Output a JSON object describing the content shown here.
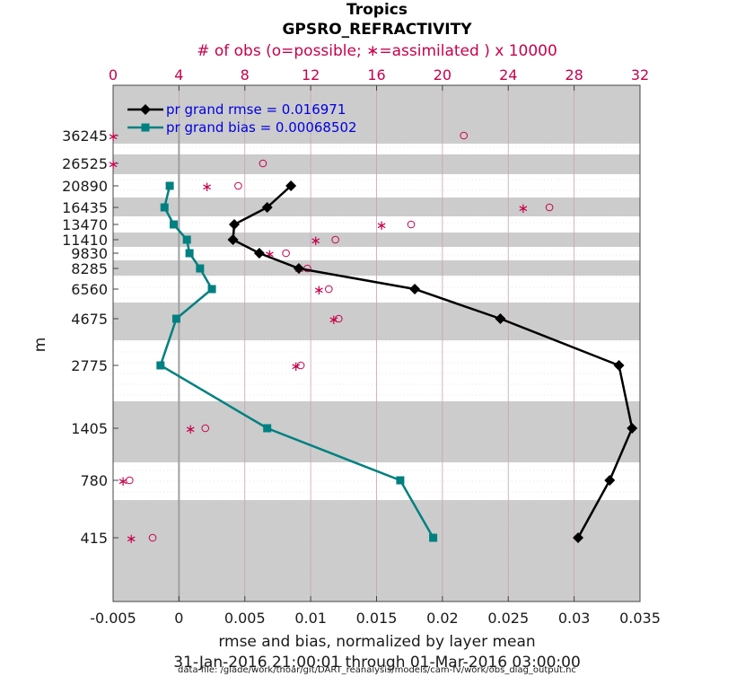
{
  "chart_data": {
    "type": "line",
    "title": "Tropics",
    "subtitle": "GPSRO_REFRACTIVITY",
    "top_axis_label": "# of obs (o=possible; ∗=assimilated ) x 10000",
    "xlabel": "rmse and bias, normalized by layer mean",
    "ylabel": "m",
    "date_range": "31-Jan-2016 21:00:01 through 01-Mar-2016 03:00:00",
    "data_file": "data file: /glade/work/thoar/git/DART_reanalysis/models/cam-fv/work/obs_diag_output.nc",
    "xlim": [
      -0.005,
      0.035
    ],
    "top_xlim": [
      0,
      32
    ],
    "x_ticks": [
      "-0.005",
      "0",
      "0.005",
      "0.01",
      "0.015",
      "0.02",
      "0.025",
      "0.03",
      "0.035"
    ],
    "top_ticks": [
      "0",
      "4",
      "8",
      "12",
      "16",
      "20",
      "24",
      "28",
      "32"
    ],
    "levels": [
      "36245",
      "26525",
      "20890",
      "16435",
      "13470",
      "11410",
      "9830",
      "8285",
      "6560",
      "4675",
      "2775",
      "1405",
      "780",
      "415"
    ],
    "bands": [
      [
        0,
        0.6
      ],
      [
        1.6,
        2.6
      ],
      [
        4.6,
        5.4
      ],
      [
        6.6,
        7.2
      ],
      [
        8.7,
        10.3
      ],
      [
        11.3,
        13.3
      ],
      [
        14.3,
        17.3
      ]
    ],
    "series": [
      {
        "name": "pr grand rmse = 0.016971",
        "color": "#000000",
        "marker": "diamond",
        "values": [
          null,
          null,
          0.0085,
          0.0067,
          0.0042,
          0.0041,
          0.0061,
          0.0091,
          0.0179,
          0.0244,
          0.0334,
          0.0344,
          0.0327,
          0.0303
        ]
      },
      {
        "name": "pr grand bias = 0.00068502",
        "color": "#008080",
        "marker": "square",
        "values": [
          null,
          null,
          -0.0007,
          -0.0011,
          -0.0004,
          0.0006,
          0.0008,
          0.0016,
          0.0025,
          -0.0002,
          -0.0014,
          0.0067,
          0.0168,
          0.0193
        ]
      }
    ],
    "obs_possible": [
      21.3,
      9.1,
      7.6,
      26.5,
      18.1,
      13.5,
      10.5,
      11.8,
      13.1,
      13.7,
      11.4,
      5.6,
      1.0,
      2.4
    ],
    "obs_assimilated": [
      0.0,
      0.0,
      5.7,
      24.9,
      16.3,
      12.3,
      9.5,
      11.3,
      12.5,
      13.4,
      11.1,
      4.7,
      0.6,
      1.1
    ]
  }
}
